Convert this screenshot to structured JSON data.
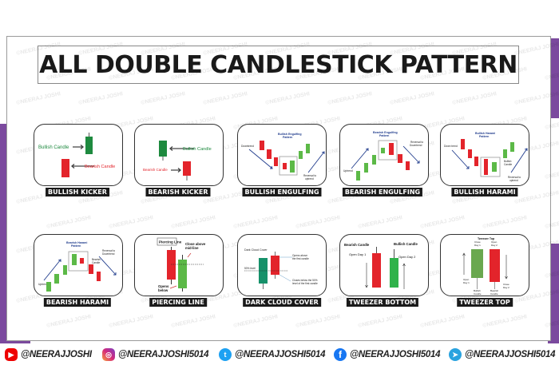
{
  "title": "ALL DOUBLE CANDLESTICK PATTERN",
  "watermark": "©NEERAJ JOSHI",
  "colors": {
    "accent_purple": "#7b4a9e",
    "bullish_green": "#1e8a3f",
    "bullish_light_green": "#5cb947",
    "bearish_red": "#e3242b",
    "annotation_navy": "#1f3b8c"
  },
  "patterns": [
    {
      "label": "BULLISH KICKER",
      "texts": {
        "bullish": "Bullish Candle",
        "bearish": "Bearish Candle"
      }
    },
    {
      "label": "BEARISH KICKER",
      "texts": {
        "bullish": "Bullish Candle",
        "bearish": "Bearish Candle"
      }
    },
    {
      "label": "BULLISH ENGULFING",
      "texts": {
        "title1": "Bullish Engulfing",
        "title2": "Pattern",
        "trend": "Downtrend",
        "rev1": "Reversal to",
        "rev2": "uptrend"
      }
    },
    {
      "label": "BEARISH ENGULFING",
      "texts": {
        "title1": "Bearish Engulfing",
        "title2": "Pattern",
        "trend": "Uptrend",
        "rev1": "Reversal to",
        "rev2": "Downtrend"
      }
    },
    {
      "label": "BULLISH HARAMI",
      "texts": {
        "title1": "Bullish Harami",
        "title2": "Pattern",
        "trend": "Down trend",
        "cand1": "Bullish",
        "cand2": "Candle",
        "rev1": "Reversal to",
        "rev2": "uptrend"
      }
    },
    {
      "label": "BEARISH HARAMI",
      "texts": {
        "title1": "Bearish Harami",
        "title2": "Pattern",
        "trend": "Uptrend",
        "cand1": "Bearish",
        "cand2": "Candle",
        "rev1": "Reversal to",
        "rev2": "Downtrend"
      }
    },
    {
      "label": "PIERCING LINE",
      "texts": {
        "title": "Piercing Line",
        "close1": "Close above",
        "close2": "mid-line",
        "open1": "Opens",
        "open2": "below"
      }
    },
    {
      "label": "DARK CLOUD COVER",
      "texts": {
        "title": "Dark Cloud Cover",
        "level": "50% level",
        "open1": "Opens above",
        "open2": "the first candle",
        "close1": "Closes below the 50%",
        "close2": "level of the first candle"
      }
    },
    {
      "label": "TWEEZER BOTTOM",
      "texts": {
        "bearish": "Bearish Candle",
        "bullish": "Bullish Candle",
        "open1": "Open Day 1",
        "open2": "Open Day 2"
      }
    },
    {
      "label": "TWEEZER TOP",
      "texts": {
        "title": "Tweezer Top",
        "close1a": "Close",
        "close1b": "Day 1",
        "open2a": "Open",
        "open2b": "Day 2",
        "open1a": "Open",
        "open1b": "Day 1",
        "close2a": "Close",
        "close2b": "Day 2",
        "bull1": "Bullish",
        "bull2": "Candle",
        "bear1": "Bearish",
        "bear2": "Candle"
      }
    }
  ],
  "footer": [
    {
      "icon": "youtube-icon",
      "handle": "@NEERAJJOSHI"
    },
    {
      "icon": "instagram-icon",
      "handle": "@NEERAJJOSHI5014"
    },
    {
      "icon": "twitter-icon",
      "handle": "@NEERAJJOSHI5014"
    },
    {
      "icon": "facebook-icon",
      "handle": "@NEERAJJOSHI5014"
    },
    {
      "icon": "telegram-icon",
      "handle": "@NEERAJJOSHI5014"
    }
  ]
}
